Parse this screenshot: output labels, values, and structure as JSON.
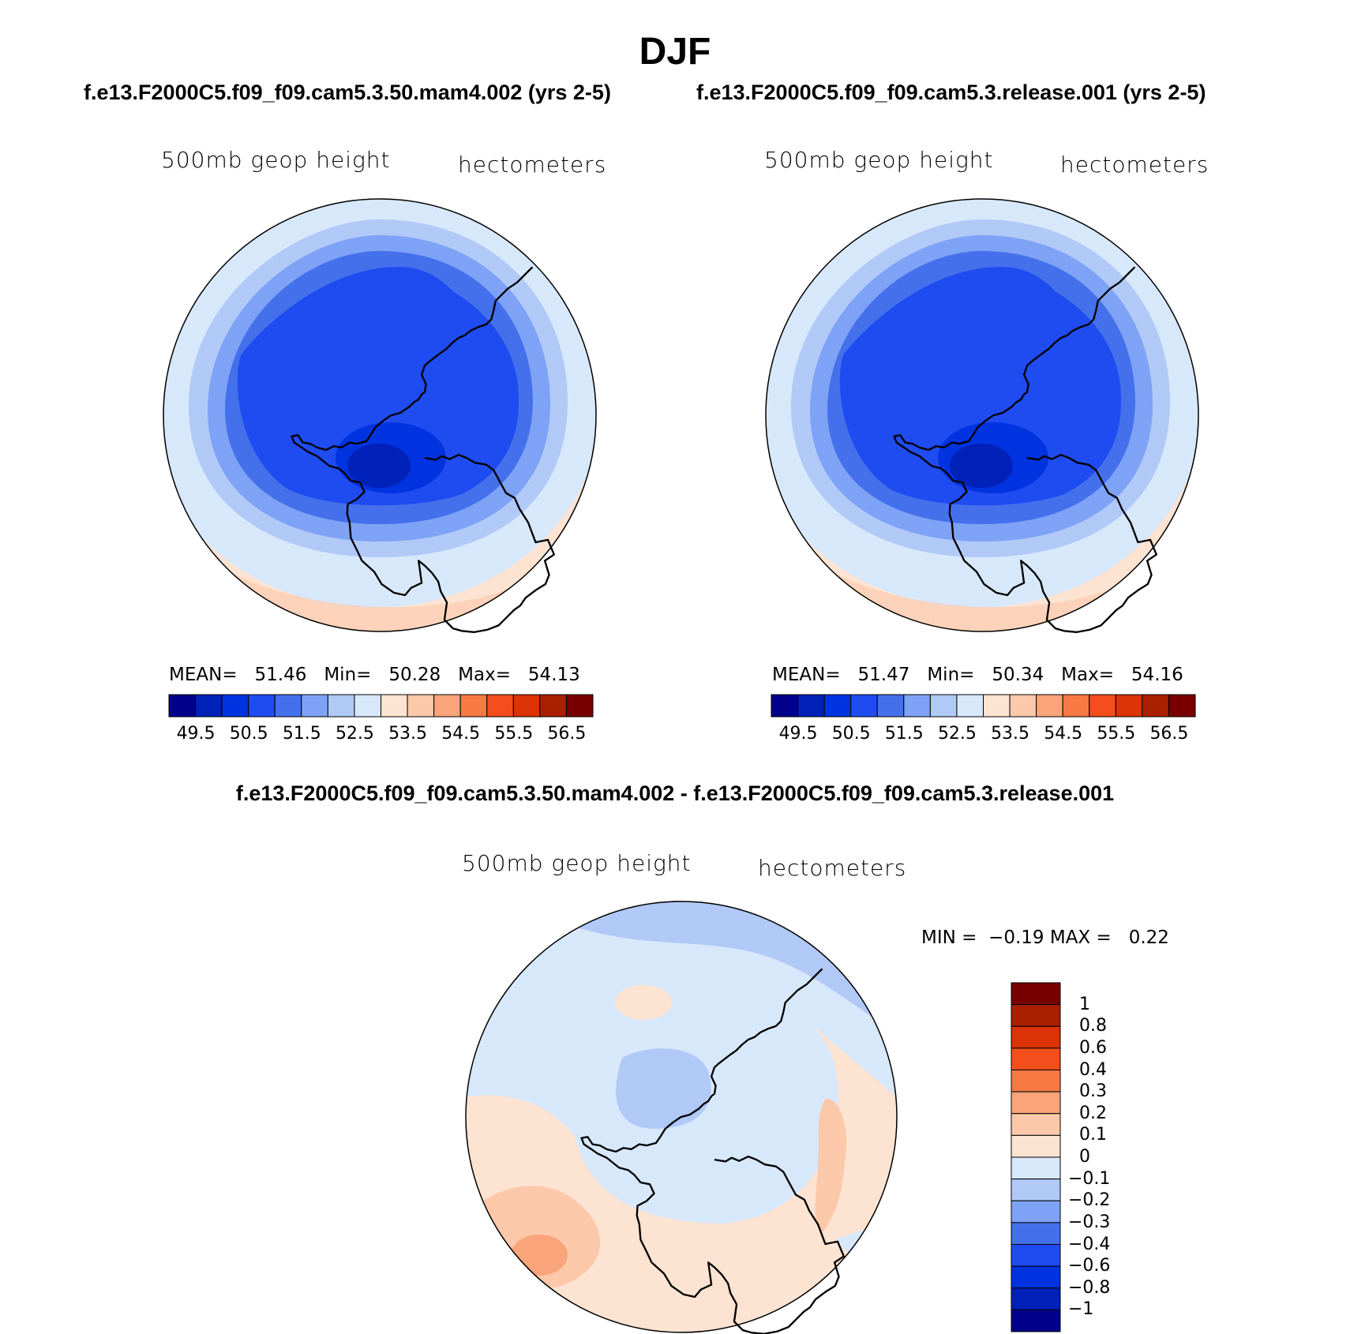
{
  "figure": {
    "title": "DJF",
    "left_run": "f.e13.F2000C5.f09_f09.cam5.3.50.mam4.002 (yrs 2-5)",
    "right_run": "f.e13.F2000C5.f09_f09.cam5.3.release.001 (yrs 2-5)",
    "diff_title": "f.e13.F2000C5.f09_f09.cam5.3.50.mam4.002 - f.e13.F2000C5.f09_f09.cam5.3.release.001"
  },
  "panels": [
    {
      "variable": "500mb geop height",
      "units": "hectometers",
      "mean_label": "MEAN=",
      "mean": "51.46",
      "min_label": "Min=",
      "min": "50.28",
      "max_label": "Max=",
      "max": "54.13"
    },
    {
      "variable": "500mb geop height",
      "units": "hectometers",
      "mean_label": "MEAN=",
      "mean": "51.47",
      "min_label": "Min=",
      "min": "50.34",
      "max_label": "Max=",
      "max": "54.16"
    }
  ],
  "diff_panel": {
    "variable": "500mb geop height",
    "units": "hectometers",
    "min_label": "MIN =",
    "min": "−0.19",
    "max_label": "MAX =",
    "max": "0.22"
  },
  "colorbars": {
    "abs_colors": [
      "#00008a",
      "#0021b8",
      "#0033e0",
      "#1f4cf0",
      "#4470ec",
      "#7ea2f5",
      "#b1c9f7",
      "#d8e8fb",
      "#fde3d2",
      "#fbc8aa",
      "#f9a47a",
      "#f77a45",
      "#f44e1c",
      "#db3306",
      "#a92000",
      "#780000"
    ],
    "abs_ticks": [
      "49.5",
      "50.5",
      "51.5",
      "52.5",
      "53.5",
      "54.5",
      "55.5",
      "56.5"
    ],
    "diff_colors": [
      "#780000",
      "#a92000",
      "#db3306",
      "#f44e1c",
      "#f77a45",
      "#f9a47a",
      "#fbc8aa",
      "#fde3d2",
      "#d8e8fb",
      "#b1c9f7",
      "#7ea2f5",
      "#4470ec",
      "#1f4cf0",
      "#0033e0",
      "#0021b8",
      "#00008a"
    ],
    "diff_ticks": [
      "1",
      "0.8",
      "0.6",
      "0.4",
      "0.3",
      "0.2",
      "0.1",
      "0",
      "−0.1",
      "−0.2",
      "−0.3",
      "−0.4",
      "−0.6",
      "−0.8",
      "−1"
    ]
  },
  "map_colors": {
    "ring1": "#fde3d2",
    "ring2": "#d8e8fb",
    "ring3": "#b1c9f7",
    "ring4": "#7ea2f5",
    "ring5": "#4470ec",
    "ring6": "#1f4cf0",
    "ring7": "#0033e0",
    "ring8": "#0021b8",
    "edge_warm": "#fbc8aa"
  }
}
